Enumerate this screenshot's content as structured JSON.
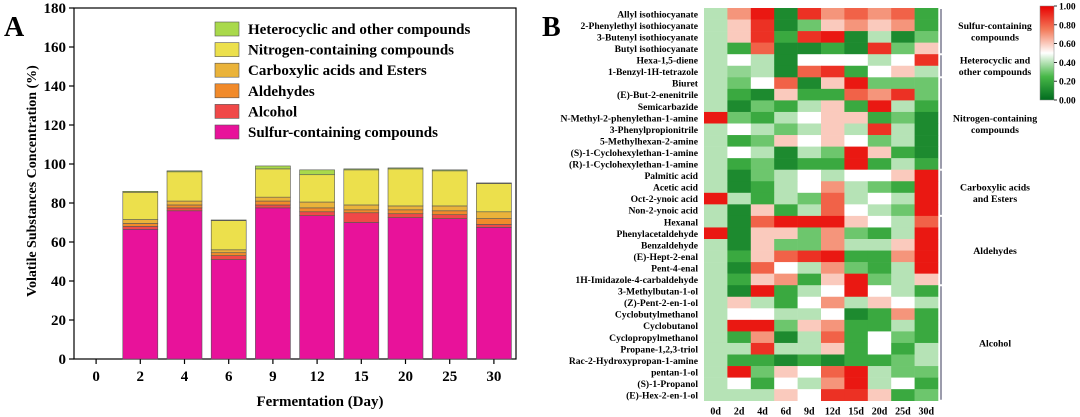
{
  "chart_data": [
    {
      "panel_label": "A",
      "type": "bar",
      "stacked": true,
      "xlabel": "Fermentation (Day)",
      "ylabel": "Volatile Substances Concentration (%)",
      "ylim": [
        0,
        180
      ],
      "yticks": [
        0,
        20,
        40,
        60,
        80,
        100,
        120,
        140,
        160,
        180
      ],
      "categories": [
        "0",
        "2",
        "4",
        "6",
        "9",
        "12",
        "15",
        "20",
        "25",
        "30"
      ],
      "legend_position": "top-right",
      "series": [
        {
          "name": "Sulfur-containing compounds",
          "color": "#e8129a",
          "values": [
            0,
            66.5,
            76,
            51,
            77.5,
            73.5,
            70,
            72.5,
            72,
            67.5
          ]
        },
        {
          "name": "Alcohol",
          "color": "#f04848",
          "values": [
            0,
            1.5,
            1.5,
            2,
            1.5,
            2,
            5,
            2,
            2,
            1.5
          ]
        },
        {
          "name": "Aldehydes",
          "color": "#f18a2a",
          "values": [
            0,
            1.5,
            1.5,
            1.5,
            2,
            2,
            1.5,
            2,
            2,
            3
          ]
        },
        {
          "name": "Carboxylic acids and Esters",
          "color": "#eab33a",
          "values": [
            0,
            2,
            2,
            1.5,
            2,
            3,
            2.5,
            2,
            2.5,
            3.5
          ]
        },
        {
          "name": "Nitrogen-containing compounds",
          "color": "#ece04c",
          "values": [
            0,
            14,
            15,
            15,
            14.5,
            14,
            18,
            19,
            18,
            14.5
          ]
        },
        {
          "name": "Heterocyclic and other compounds",
          "color": "#a9d94b",
          "values": [
            0,
            0.5,
            0.5,
            0.3,
            1.5,
            2.5,
            0.5,
            0.5,
            0.5,
            0.3
          ]
        }
      ]
    },
    {
      "panel_label": "B",
      "type": "heatmap",
      "colorbar": {
        "min": 0,
        "max": 1,
        "ticks": [
          "0.00",
          "0.20",
          "0.40",
          "0.60",
          "0.80",
          "1.00"
        ],
        "colors": [
          "#006b1e",
          "#ffffff",
          "#e80000"
        ]
      },
      "columns": [
        "0d",
        "2d",
        "4d",
        "6d",
        "9d",
        "12d",
        "15d",
        "20d",
        "25d",
        "30d"
      ],
      "rows": [
        "Allyl isothiocyanate",
        "2-Phenylethyl isothiocyanate",
        "3-Butenyl isothiocyanate",
        "Butyl isothiocyanate",
        "Hexa-1,5-diene",
        "1-Benzyl-1H-tetrazole",
        "Biuret",
        "(E)-But-2-enenitrile",
        "Semicarbazide",
        "N-Methyl-2-phenylethan-1-amine",
        "3-Phenylpropionitrile",
        "5-Methylhexan-2-amine",
        "(S)-1-Cyclohexylethan-1-amine",
        "(R)-1-Cyclohexylethan-1-amine",
        "Palmitic acid",
        "Acetic acid",
        "Oct-2-ynoic acid",
        "Non-2-ynoic acid",
        "Hexanal",
        "Phenylacetaldehyde",
        "Benzaldehyde",
        "(E)-Hept-2-enal",
        "Pent-4-enal",
        "1H-Imidazole-4-carbaldehyde",
        "3-Methylbutan-1-ol",
        "(Z)-Pent-2-en-1-ol",
        "Cyclobutylmethanol",
        "Cyclobutanol",
        "Cyclopropylmethanol",
        "Propane-1,2,3-triol",
        "Rac-2-Hydroxypropan-1-amine",
        "pentan-1-ol",
        "(S)-1-Propanol",
        "(E)-Hex-2-en-1-ol"
      ],
      "values": [
        [
          0.4,
          0.7,
          0.95,
          0.1,
          0.9,
          0.7,
          0.8,
          0.7,
          0.8,
          0.2
        ],
        [
          0.4,
          0.6,
          0.9,
          0.1,
          0.3,
          0.6,
          0.7,
          0.6,
          0.7,
          0.2
        ],
        [
          0.4,
          0.6,
          0.9,
          0.2,
          0.9,
          0.95,
          0.1,
          0.4,
          0.1,
          0.3
        ],
        [
          0.4,
          0.2,
          0.8,
          0.1,
          0.1,
          0.2,
          0.1,
          0.9,
          0.3,
          0.6
        ],
        [
          0.4,
          0.5,
          0.4,
          0.1,
          0.5,
          0.5,
          0.5,
          0.4,
          0.5,
          0.9
        ],
        [
          0.4,
          0.35,
          0.4,
          0.1,
          0.8,
          0.9,
          0.2,
          0.5,
          0.6,
          0.4
        ],
        [
          0.4,
          0.3,
          0.5,
          0.8,
          0.1,
          0.6,
          0.95,
          0.3,
          0.3,
          0.3
        ],
        [
          0.4,
          0.2,
          0.1,
          0.6,
          0.2,
          0.2,
          0.8,
          0.7,
          0.9,
          0.3
        ],
        [
          0.4,
          0.1,
          0.3,
          0.2,
          0.4,
          0.6,
          0.2,
          0.95,
          0.4,
          0.2
        ],
        [
          0.95,
          0.3,
          0.2,
          0.4,
          0.5,
          0.6,
          0.6,
          0.2,
          0.3,
          0.1
        ],
        [
          0.4,
          0.5,
          0.4,
          0.3,
          0.4,
          0.6,
          0.4,
          0.9,
          0.4,
          0.1
        ],
        [
          0.4,
          0.2,
          0.3,
          0.6,
          0.5,
          0.6,
          0.5,
          0.3,
          0.4,
          0.1
        ],
        [
          0.4,
          0.5,
          0.4,
          0.1,
          0.4,
          0.3,
          0.95,
          0.6,
          0.2,
          0.1
        ],
        [
          0.4,
          0.2,
          0.3,
          0.1,
          0.2,
          0.2,
          0.95,
          0.2,
          0.4,
          0.2
        ],
        [
          0.4,
          0.1,
          0.3,
          0.4,
          0.5,
          0.4,
          0.5,
          0.5,
          0.6,
          0.95
        ],
        [
          0.4,
          0.1,
          0.2,
          0.4,
          0.5,
          0.7,
          0.4,
          0.3,
          0.2,
          0.95
        ],
        [
          0.95,
          0.4,
          0.2,
          0.4,
          0.3,
          0.8,
          0.4,
          0.5,
          0.4,
          0.95
        ],
        [
          0.4,
          0.1,
          0.6,
          0.2,
          0.4,
          0.8,
          0.5,
          0.4,
          0.3,
          0.95
        ],
        [
          0.4,
          0.1,
          0.8,
          0.95,
          0.95,
          0.95,
          0.6,
          0.5,
          0.4,
          0.8
        ],
        [
          0.95,
          0.1,
          0.6,
          0.6,
          0.3,
          0.7,
          0.3,
          0.2,
          0.4,
          0.95
        ],
        [
          0.4,
          0.1,
          0.6,
          0.3,
          0.3,
          0.7,
          0.4,
          0.4,
          0.6,
          0.95
        ],
        [
          0.4,
          0.2,
          0.6,
          0.8,
          0.9,
          0.95,
          0.2,
          0.2,
          0.7,
          0.95
        ],
        [
          0.4,
          0.1,
          0.8,
          0.5,
          0.4,
          0.7,
          0.3,
          0.2,
          0.4,
          0.95
        ],
        [
          0.4,
          0.2,
          0.6,
          0.7,
          0.2,
          0.6,
          0.95,
          0.3,
          0.4,
          0.6
        ],
        [
          0.4,
          0.1,
          0.95,
          0.2,
          0.4,
          0.5,
          0.95,
          0.5,
          0.4,
          0.2
        ],
        [
          0.4,
          0.6,
          0.4,
          0.2,
          0.5,
          0.7,
          0.4,
          0.6,
          0.5,
          0.4
        ],
        [
          0.4,
          0.5,
          0.5,
          0.4,
          0.4,
          0.5,
          0.1,
          0.2,
          0.7,
          0.2
        ],
        [
          0.4,
          0.95,
          0.95,
          0.3,
          0.6,
          0.7,
          0.2,
          0.2,
          0.4,
          0.2
        ],
        [
          0.4,
          0.2,
          0.7,
          0.1,
          0.4,
          0.8,
          0.2,
          0.5,
          0.3,
          0.2
        ],
        [
          0.4,
          0.4,
          0.9,
          0.4,
          0.4,
          0.6,
          0.2,
          0.5,
          0.2,
          0.4
        ],
        [
          0.4,
          0.2,
          0.2,
          0.1,
          0.2,
          0.1,
          0.2,
          0.2,
          0.3,
          0.4
        ],
        [
          0.4,
          0.95,
          0.3,
          0.6,
          0.5,
          0.8,
          0.95,
          0.4,
          0.3,
          0.3
        ],
        [
          0.4,
          0.5,
          0.2,
          0.5,
          0.4,
          0.7,
          0.95,
          0.4,
          0.5,
          0.2
        ],
        [
          0.4,
          0.4,
          0.4,
          0.6,
          0.5,
          0.9,
          0.9,
          0.6,
          0.2,
          0.3
        ]
      ],
      "groups": [
        {
          "label": "Sulfur-containing compounds",
          "first_row": 0,
          "last_row": 3
        },
        {
          "label": "Heterocyclic and other compounds",
          "first_row": 4,
          "last_row": 5
        },
        {
          "label": "Nitrogen-containing compounds",
          "first_row": 6,
          "last_row": 13
        },
        {
          "label": "Carboxylic acids and Esters",
          "first_row": 14,
          "last_row": 17
        },
        {
          "label": "Aldehydes",
          "first_row": 18,
          "last_row": 23
        },
        {
          "label": "Alcohol",
          "first_row": 24,
          "last_row": 33
        }
      ]
    }
  ]
}
